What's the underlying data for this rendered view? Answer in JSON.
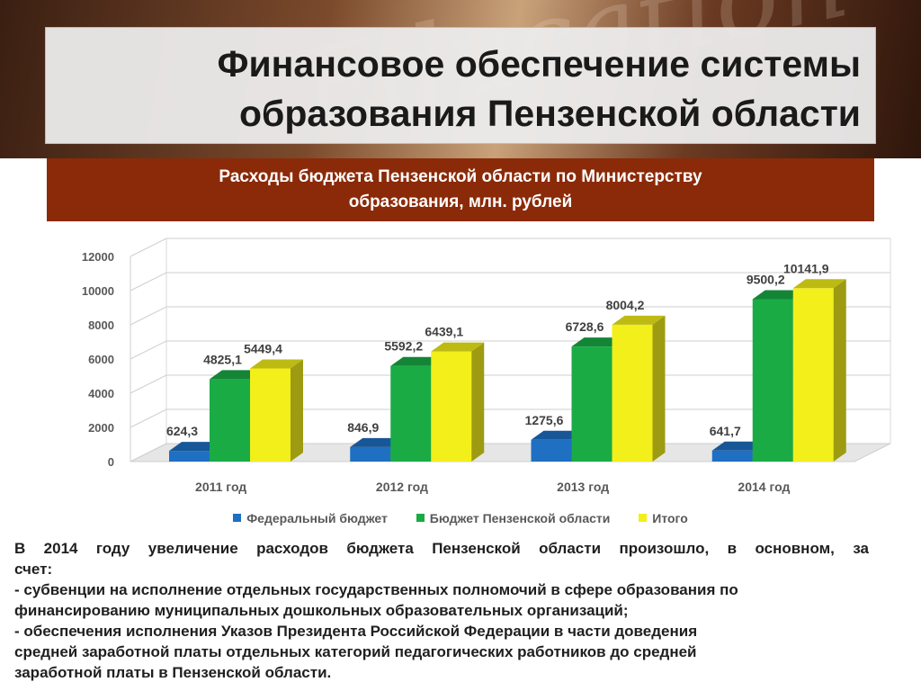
{
  "header": {
    "title_line1": "Финансовое обеспечение системы",
    "title_line2": "образования Пензенской области",
    "subtitle_line1": "Расходы бюджета Пензенской области по Министерству",
    "subtitle_line2": "образования, млн. рублей"
  },
  "chart_data": {
    "type": "bar",
    "categories": [
      "2011 год",
      "2012 год",
      "2013 год",
      "2014 год"
    ],
    "series": [
      {
        "name": "Федеральный бюджет",
        "color": "#1f6fc2",
        "values": [
          624.3,
          846.9,
          1275.6,
          641.7
        ],
        "labels": [
          "624,3",
          "846,9",
          "1275,6",
          "641,7"
        ]
      },
      {
        "name": "Бюджет Пензенской области",
        "color": "#1aab45",
        "values": [
          4825.1,
          5592.2,
          6728.6,
          9500.2
        ],
        "labels": [
          "4825,1",
          "5592,2",
          "6728,6",
          "9500,2"
        ]
      },
      {
        "name": "Итого",
        "color": "#f2ef1a",
        "values": [
          5449.4,
          6439.1,
          8004.2,
          10141.9
        ],
        "labels": [
          "5449,4",
          "6439,1",
          "8004,2",
          "10141,9"
        ]
      }
    ],
    "ylim": [
      0,
      12000
    ],
    "yticks": [
      "0",
      "2000",
      "4000",
      "6000",
      "8000",
      "10000",
      "12000"
    ],
    "grid": true,
    "legend_position": "bottom"
  },
  "body_text": {
    "line1": "В 2014 году увеличение расходов бюджета Пензенской области произошло, в основном, за",
    "line2": "счет:",
    "line3": "- субвенции на исполнение отдельных государственных полномочий в сфере образования по",
    "line4": "финансированию муниципальных дошкольных образовательных организаций;",
    "line5": "- обеспечения исполнения Указов Президента Российской Федерации в части доведения",
    "line6": "средней заработной платы отдельных категорий педагогических работников до средней",
    "line7": "заработной платы в Пензенской области."
  }
}
